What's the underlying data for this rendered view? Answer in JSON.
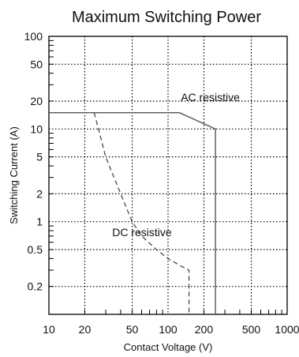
{
  "chart_data": {
    "type": "line",
    "title": "Maximum Switching Power",
    "xlabel": "Contact Voltage (V)",
    "ylabel": "Switching Current (A)",
    "x_scale": "log",
    "y_scale": "log",
    "xlim": [
      10,
      1000
    ],
    "ylim": [
      0.1,
      100
    ],
    "grid": true,
    "x_ticks": [
      {
        "value": 10,
        "label": "10"
      },
      {
        "value": 20,
        "label": "20"
      },
      {
        "value": 50,
        "label": "50"
      },
      {
        "value": 100,
        "label": "100"
      },
      {
        "value": 200,
        "label": "200"
      },
      {
        "value": 500,
        "label": "500"
      },
      {
        "value": 1000,
        "label": "1000"
      }
    ],
    "y_ticks": [
      {
        "value": 0.2,
        "label": "0.2"
      },
      {
        "value": 0.5,
        "label": "0.5"
      },
      {
        "value": 1,
        "label": "1"
      },
      {
        "value": 2,
        "label": "2"
      },
      {
        "value": 5,
        "label": "5"
      },
      {
        "value": 10,
        "label": "10"
      },
      {
        "value": 20,
        "label": "20"
      },
      {
        "value": 50,
        "label": "50"
      },
      {
        "value": 100,
        "label": "100"
      }
    ],
    "series": [
      {
        "name": "AC resistive",
        "style": "solid",
        "color": "#555555",
        "points": [
          [
            10,
            15
          ],
          [
            125,
            15
          ],
          [
            250,
            10
          ],
          [
            250,
            0.1
          ]
        ]
      },
      {
        "name": "DC resistive",
        "style": "dashed",
        "color": "#555555",
        "points": [
          [
            24,
            15
          ],
          [
            30,
            5
          ],
          [
            40,
            2
          ],
          [
            50,
            1
          ],
          [
            60,
            0.7
          ],
          [
            80,
            0.5
          ],
          [
            100,
            0.4
          ],
          [
            130,
            0.33
          ],
          [
            150,
            0.3
          ],
          [
            150,
            0.1
          ]
        ]
      }
    ],
    "annotations": [
      {
        "text": "AC resistive",
        "x": 128,
        "y": 20
      },
      {
        "text": "DC resistive",
        "x": 34,
        "y": 0.7
      }
    ]
  }
}
